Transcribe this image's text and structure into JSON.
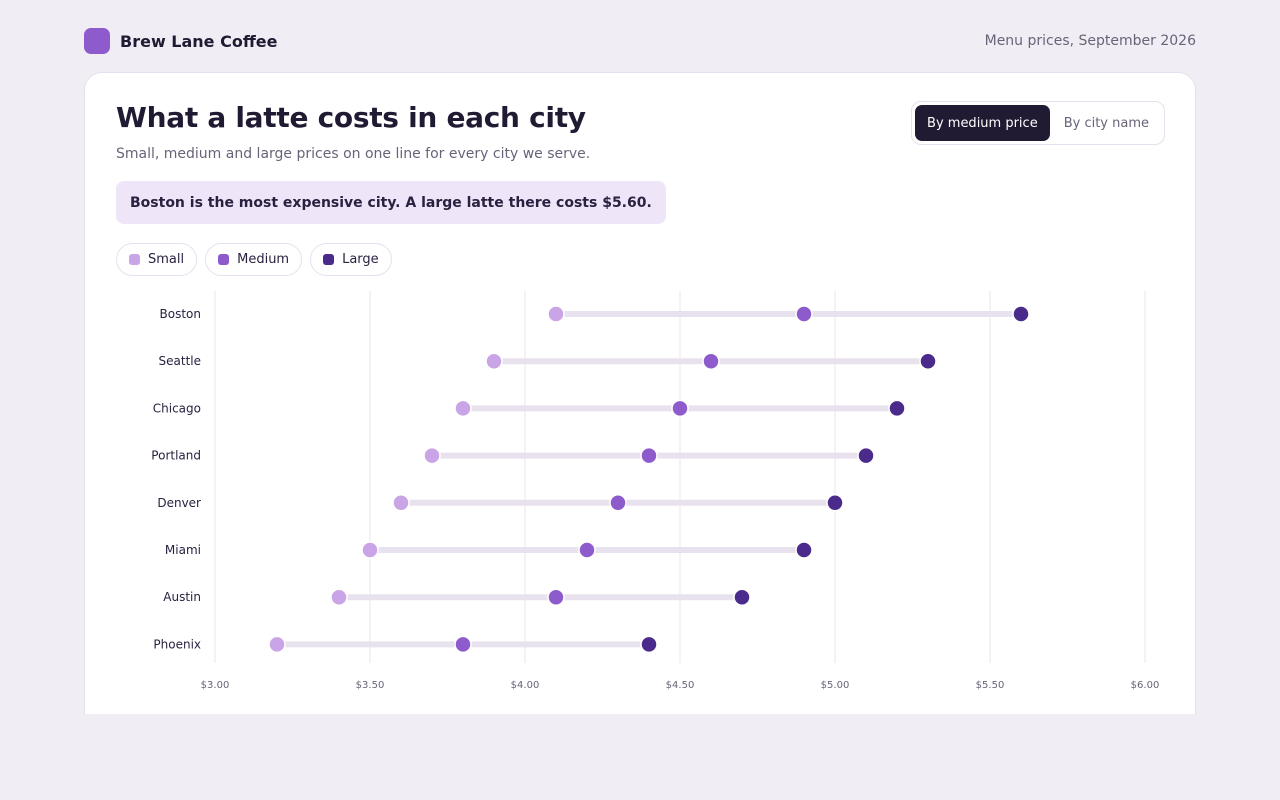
{
  "brand": {
    "name": "Brew Lane Coffee",
    "period": "Menu prices, September 2026"
  },
  "header": {
    "title": "What a latte costs in each city",
    "subtitle": "Small, medium and large prices on one line for every city we serve."
  },
  "sort": {
    "options": [
      "By medium price",
      "By city name"
    ],
    "selected": "By medium price"
  },
  "insight": "Boston is the most expensive city. A large latte there costs $5.60.",
  "colors": {
    "small": "#c9a4e6",
    "medium": "#8e5bcc",
    "large": "#4a2a8a",
    "track": "#e8e2ef",
    "grid": "#ece8f0"
  },
  "chart_data": {
    "type": "dot-range",
    "categories": [
      "Boston",
      "Seattle",
      "Chicago",
      "Portland",
      "Denver",
      "Miami",
      "Austin",
      "Phoenix"
    ],
    "series": [
      {
        "name": "Small",
        "values": [
          4.1,
          3.9,
          3.8,
          3.7,
          3.6,
          3.5,
          3.4,
          3.2
        ]
      },
      {
        "name": "Medium",
        "values": [
          4.9,
          4.6,
          4.5,
          4.4,
          4.3,
          4.2,
          4.1,
          3.8
        ]
      },
      {
        "name": "Large",
        "values": [
          5.6,
          5.3,
          5.2,
          5.1,
          5.0,
          4.9,
          4.7,
          4.4
        ]
      }
    ],
    "xlim": [
      3.0,
      6.0
    ],
    "xticks": [
      "$3.00",
      "$3.50",
      "$4.00",
      "$4.50",
      "$5.00",
      "$5.50",
      "$6.00"
    ],
    "xtick_values": [
      3.0,
      3.5,
      4.0,
      4.5,
      5.0,
      5.5,
      6.0
    ],
    "grid": true
  }
}
